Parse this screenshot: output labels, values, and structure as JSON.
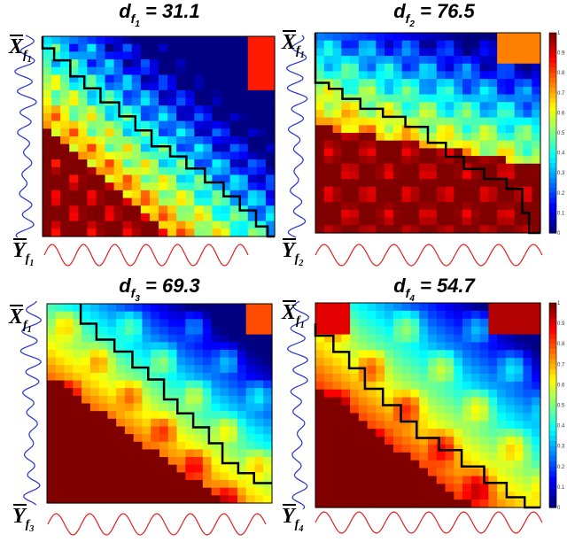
{
  "chart_data": [
    {
      "type": "heatmap",
      "title_main": "d",
      "title_sub": "f",
      "title_subsub": "1",
      "title_value": " = 31.1",
      "x_label_main": "Y",
      "x_label_sub": "f",
      "x_label_subsub": "1",
      "y_label_main": "X",
      "y_label_sub": "f",
      "y_label_subsub": "1",
      "distance": 31.1,
      "colorbar": false,
      "colorbar_label": "",
      "path": [
        [
          0,
          0
        ],
        [
          0.05,
          0.06
        ],
        [
          0.12,
          0.12
        ],
        [
          0.18,
          0.2
        ],
        [
          0.25,
          0.26
        ],
        [
          0.33,
          0.33
        ],
        [
          0.4,
          0.4
        ],
        [
          0.47,
          0.47
        ],
        [
          0.55,
          0.55
        ],
        [
          0.62,
          0.6
        ],
        [
          0.7,
          0.66
        ],
        [
          0.78,
          0.73
        ],
        [
          0.85,
          0.8
        ],
        [
          0.92,
          0.87
        ],
        [
          0.97,
          0.95
        ],
        [
          1,
          1
        ]
      ]
    },
    {
      "type": "heatmap",
      "title_main": "d",
      "title_sub": "f",
      "title_subsub": "2",
      "title_value": " = 76.5",
      "x_label_main": "Y",
      "x_label_sub": "f",
      "x_label_subsub": "2",
      "y_label_main": "X",
      "y_label_sub": "f",
      "y_label_subsub": "1",
      "distance": 76.5,
      "colorbar": true,
      "colorbar_ticks": [
        "0",
        "0.1",
        "0.2",
        "0.3",
        "0.4",
        "0.5",
        "0.6",
        "0.7",
        "0.8",
        "0.9",
        "1"
      ],
      "colorbar_label": "",
      "path": [
        [
          0,
          0
        ],
        [
          0.06,
          0.25
        ],
        [
          0.12,
          0.28
        ],
        [
          0.2,
          0.33
        ],
        [
          0.3,
          0.38
        ],
        [
          0.4,
          0.42
        ],
        [
          0.5,
          0.47
        ],
        [
          0.58,
          0.55
        ],
        [
          0.66,
          0.62
        ],
        [
          0.75,
          0.68
        ],
        [
          0.85,
          0.73
        ],
        [
          0.92,
          0.78
        ],
        [
          0.95,
          0.9
        ],
        [
          1,
          1
        ]
      ]
    },
    {
      "type": "heatmap",
      "title_main": "d",
      "title_sub": "f",
      "title_subsub": "3",
      "title_value": " = 69.3",
      "x_label_main": "Y",
      "x_label_sub": "f",
      "x_label_subsub": "3",
      "y_label_main": "X",
      "y_label_sub": "f",
      "y_label_subsub": "1",
      "distance": 69.3,
      "colorbar": false,
      "colorbar_label": "",
      "path": [
        [
          0.15,
          0
        ],
        [
          0.22,
          0.1
        ],
        [
          0.3,
          0.18
        ],
        [
          0.38,
          0.24
        ],
        [
          0.45,
          0.32
        ],
        [
          0.52,
          0.38
        ],
        [
          0.58,
          0.48
        ],
        [
          0.65,
          0.55
        ],
        [
          0.72,
          0.62
        ],
        [
          0.78,
          0.7
        ],
        [
          0.85,
          0.8
        ],
        [
          0.92,
          0.85
        ],
        [
          1,
          0.9
        ]
      ]
    },
    {
      "type": "heatmap",
      "title_main": "d",
      "title_sub": "f",
      "title_subsub": "4",
      "title_value": " = 54.7",
      "x_label_main": "Y",
      "x_label_sub": "f",
      "x_label_subsub": "4",
      "y_label_main": "X",
      "y_label_sub": "f",
      "y_label_subsub": "1",
      "distance": 54.7,
      "colorbar": true,
      "colorbar_ticks": [
        "0",
        "0.1",
        "0.2",
        "0.3",
        "0.4",
        "0.5",
        "0.6",
        "0.7",
        "0.8",
        "0.9",
        "1"
      ],
      "colorbar_label": "",
      "path": [
        [
          0,
          0.1
        ],
        [
          0.08,
          0.16
        ],
        [
          0.15,
          0.24
        ],
        [
          0.22,
          0.32
        ],
        [
          0.3,
          0.42
        ],
        [
          0.38,
          0.5
        ],
        [
          0.45,
          0.58
        ],
        [
          0.55,
          0.66
        ],
        [
          0.65,
          0.72
        ],
        [
          0.75,
          0.8
        ],
        [
          0.85,
          0.88
        ],
        [
          0.93,
          0.95
        ],
        [
          1,
          1
        ]
      ]
    }
  ],
  "colors": {
    "signal_y": "#2233cc",
    "signal_x": "#e02020",
    "path": "#000000"
  }
}
